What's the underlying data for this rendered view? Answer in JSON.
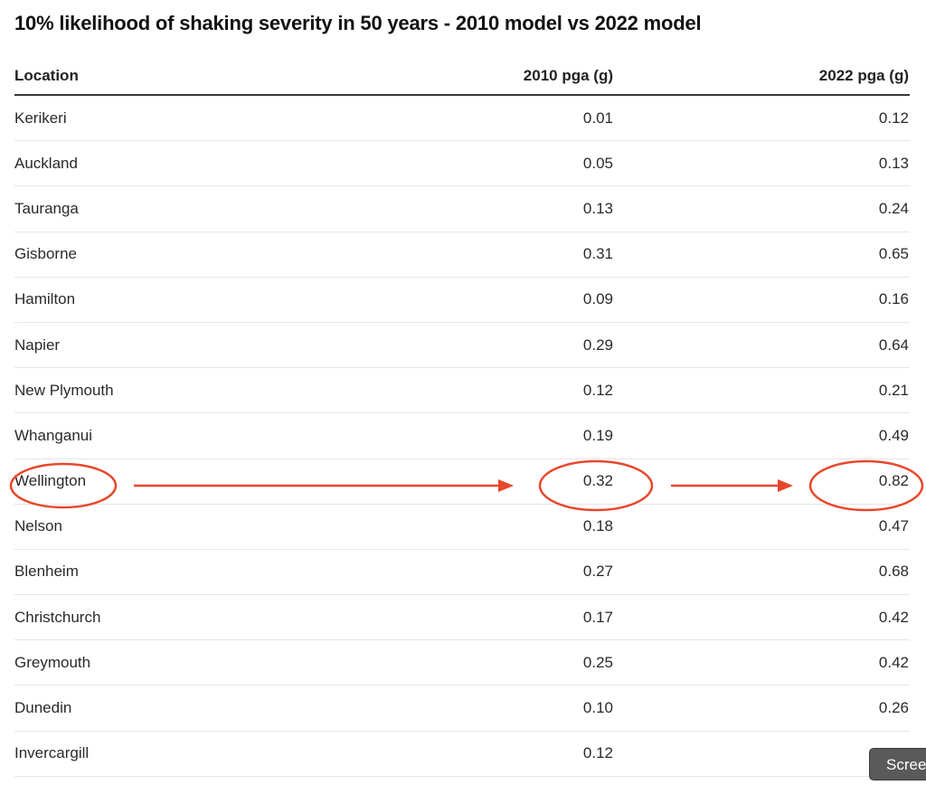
{
  "title": "10% likelihood of shaking severity in 50 years - 2010 model vs 2022 model",
  "table": {
    "headers": {
      "location": "Location",
      "pga_2010": "2010 pga (g)",
      "pga_2022": "2022 pga (g)"
    },
    "rows": [
      {
        "location": "Kerikeri",
        "pga_2010": "0.01",
        "pga_2022": "0.12"
      },
      {
        "location": "Auckland",
        "pga_2010": "0.05",
        "pga_2022": "0.13"
      },
      {
        "location": "Tauranga",
        "pga_2010": "0.13",
        "pga_2022": "0.24"
      },
      {
        "location": "Gisborne",
        "pga_2010": "0.31",
        "pga_2022": "0.65"
      },
      {
        "location": "Hamilton",
        "pga_2010": "0.09",
        "pga_2022": "0.16"
      },
      {
        "location": "Napier",
        "pga_2010": "0.29",
        "pga_2022": "0.64"
      },
      {
        "location": "New Plymouth",
        "pga_2010": "0.12",
        "pga_2022": "0.21"
      },
      {
        "location": "Whanganui",
        "pga_2010": "0.19",
        "pga_2022": "0.49"
      },
      {
        "location": "Wellington",
        "pga_2010": "0.32",
        "pga_2022": "0.82"
      },
      {
        "location": "Nelson",
        "pga_2010": "0.18",
        "pga_2022": "0.47"
      },
      {
        "location": "Blenheim",
        "pga_2010": "0.27",
        "pga_2022": "0.68"
      },
      {
        "location": "Christchurch",
        "pga_2010": "0.17",
        "pga_2022": "0.42"
      },
      {
        "location": "Greymouth",
        "pga_2010": "0.25",
        "pga_2022": "0.42"
      },
      {
        "location": "Dunedin",
        "pga_2010": "0.10",
        "pga_2022": "0.26"
      },
      {
        "location": "Invercargill",
        "pga_2010": "0.12",
        "pga_2022": ""
      }
    ]
  },
  "annotation": {
    "highlighted_row": "Wellington",
    "color": "#e8472b"
  },
  "overlay_button": {
    "label": "Scree"
  }
}
